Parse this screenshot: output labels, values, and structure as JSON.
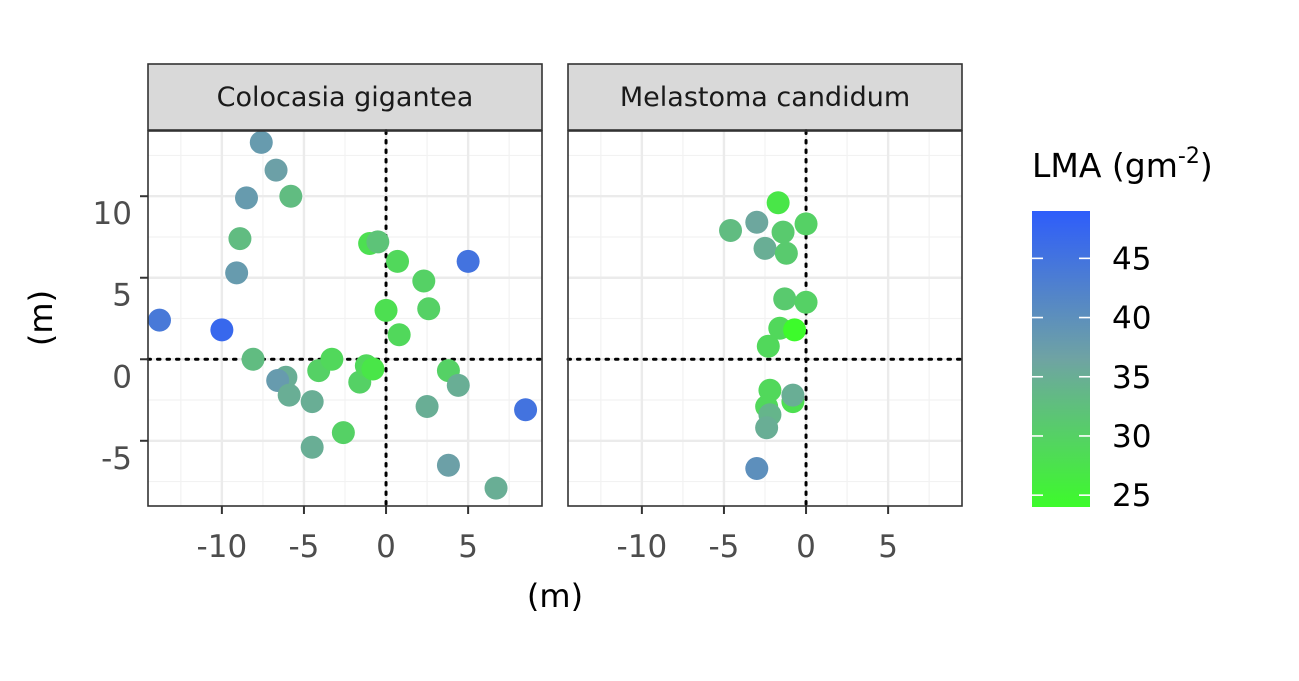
{
  "chart_data": {
    "type": "scatter",
    "xlabel": "(m)",
    "ylabel": "(m)",
    "xlim": [
      -14.5,
      9.5
    ],
    "ylim": [
      -9,
      14
    ],
    "x_ticks": [
      -10,
      -5,
      0,
      5
    ],
    "x_tick_labels": [
      "-10",
      "-5",
      "0",
      "5"
    ],
    "y_ticks": [
      -5,
      0,
      5,
      10
    ],
    "y_tick_labels": [
      "-5",
      "0",
      "5",
      "10"
    ],
    "reference_lines": {
      "x": 0,
      "y": 0,
      "style": "dotted"
    },
    "grid": true,
    "legend": {
      "title": "LMA (gm",
      "title_superscript": "-2",
      "title_close": ")",
      "placement": "right",
      "range": [
        24,
        49
      ],
      "ticks": [
        25,
        30,
        35,
        40,
        45
      ],
      "tick_labels": [
        "25",
        "30",
        "35",
        "40",
        "45"
      ],
      "colors": {
        "low": "#3dfb2b",
        "mid": "#6fa3a3",
        "high": "#2e5dfb"
      }
    },
    "panels": [
      {
        "title": "Colocasia gigantea",
        "points": [
          {
            "x": -7.6,
            "y": 13.3,
            "lma": 38
          },
          {
            "x": -6.7,
            "y": 11.6,
            "lma": 37
          },
          {
            "x": -8.5,
            "y": 9.9,
            "lma": 38
          },
          {
            "x": -5.8,
            "y": 10.0,
            "lma": 33
          },
          {
            "x": -8.9,
            "y": 7.4,
            "lma": 33
          },
          {
            "x": -9.1,
            "y": 5.3,
            "lma": 38
          },
          {
            "x": -13.8,
            "y": 2.4,
            "lma": 44
          },
          {
            "x": -10.0,
            "y": 1.8,
            "lma": 47
          },
          {
            "x": -8.1,
            "y": 0.0,
            "lma": 33
          },
          {
            "x": -6.1,
            "y": -1.1,
            "lma": 35
          },
          {
            "x": -6.6,
            "y": -1.3,
            "lma": 38
          },
          {
            "x": -5.9,
            "y": -2.2,
            "lma": 35
          },
          {
            "x": -4.5,
            "y": -2.6,
            "lma": 35
          },
          {
            "x": -4.5,
            "y": -5.4,
            "lma": 35
          },
          {
            "x": -2.6,
            "y": -4.5,
            "lma": 30
          },
          {
            "x": -4.1,
            "y": -0.7,
            "lma": 30
          },
          {
            "x": -3.3,
            "y": 0.0,
            "lma": 29
          },
          {
            "x": -1.6,
            "y": -1.4,
            "lma": 30
          },
          {
            "x": -1.2,
            "y": -0.4,
            "lma": 29
          },
          {
            "x": -0.8,
            "y": -0.6,
            "lma": 27
          },
          {
            "x": -1.0,
            "y": 7.1,
            "lma": 28
          },
          {
            "x": -0.5,
            "y": 7.2,
            "lma": 32
          },
          {
            "x": 0.0,
            "y": 3.0,
            "lma": 28
          },
          {
            "x": 0.8,
            "y": 1.5,
            "lma": 29
          },
          {
            "x": 0.7,
            "y": 6.0,
            "lma": 29
          },
          {
            "x": 2.3,
            "y": 4.8,
            "lma": 30
          },
          {
            "x": 2.6,
            "y": 3.1,
            "lma": 30
          },
          {
            "x": 3.8,
            "y": -0.7,
            "lma": 30
          },
          {
            "x": 4.4,
            "y": -1.6,
            "lma": 35
          },
          {
            "x": 2.5,
            "y": -2.9,
            "lma": 35
          },
          {
            "x": 3.8,
            "y": -6.5,
            "lma": 37
          },
          {
            "x": 5.0,
            "y": 6.0,
            "lma": 45
          },
          {
            "x": 8.5,
            "y": -3.1,
            "lma": 45
          },
          {
            "x": 6.7,
            "y": -7.9,
            "lma": 35
          }
        ]
      },
      {
        "title": "Melastoma candidum",
        "points": [
          {
            "x": -1.7,
            "y": 9.6,
            "lma": 27
          },
          {
            "x": -3.0,
            "y": 8.4,
            "lma": 36
          },
          {
            "x": -4.6,
            "y": 7.9,
            "lma": 33
          },
          {
            "x": -1.4,
            "y": 7.8,
            "lma": 31
          },
          {
            "x": 0.0,
            "y": 8.3,
            "lma": 30
          },
          {
            "x": -2.5,
            "y": 6.8,
            "lma": 35
          },
          {
            "x": -1.2,
            "y": 6.5,
            "lma": 31
          },
          {
            "x": -1.3,
            "y": 3.7,
            "lma": 31
          },
          {
            "x": 0.0,
            "y": 3.5,
            "lma": 30
          },
          {
            "x": -1.6,
            "y": 1.9,
            "lma": 29
          },
          {
            "x": -0.7,
            "y": 1.8,
            "lma": 24
          },
          {
            "x": -2.3,
            "y": 0.8,
            "lma": 29
          },
          {
            "x": -2.2,
            "y": -1.9,
            "lma": 29
          },
          {
            "x": -0.8,
            "y": -2.6,
            "lma": 28
          },
          {
            "x": -2.4,
            "y": -2.9,
            "lma": 29
          },
          {
            "x": -0.8,
            "y": -2.2,
            "lma": 35
          },
          {
            "x": -2.2,
            "y": -3.4,
            "lma": 34
          },
          {
            "x": -2.4,
            "y": -4.2,
            "lma": 35
          },
          {
            "x": -3.0,
            "y": -6.7,
            "lma": 40
          }
        ]
      }
    ]
  }
}
